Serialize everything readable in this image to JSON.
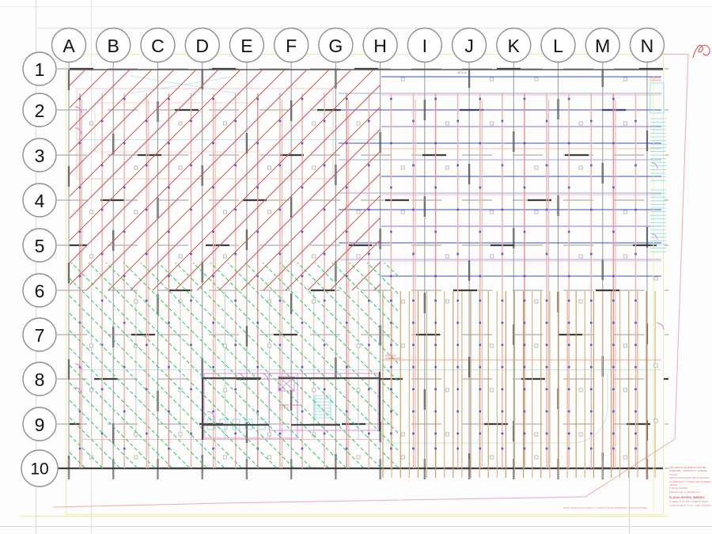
{
  "grid": {
    "columns": [
      "A",
      "B",
      "C",
      "D",
      "E",
      "F",
      "G",
      "H",
      "I",
      "J",
      "K",
      "L",
      "M",
      "N"
    ],
    "rows": [
      "1",
      "2",
      "3",
      "4",
      "5",
      "6",
      "7",
      "8",
      "9",
      "10"
    ]
  },
  "colors": {
    "red_hatch": "#d05c52",
    "green_hatch": "#3cc968",
    "blue_strong": "#3f51c8",
    "blue_light": "#9aa8e6",
    "purple": "#8b74d2",
    "pink_line": "#efb0ac",
    "pink_strong": "#e88f88",
    "tan": "#d7b078",
    "tan_dark": "#c99a55",
    "cyan": "#7fdfe6",
    "cyan_light": "#bfe9ef",
    "magenta": "#d974d4",
    "grid_grey": "#979797",
    "grid_dark": "#3e3e3e",
    "marker_grey": "#b2b2b2",
    "yellow": "#efeea6",
    "boundary_pink": "#f2aaaa",
    "dot_blue": "#4a5cd4",
    "title_red": "#e0625c",
    "scribble_red": "#d94f4f",
    "wall_grey": "#4a4a4a",
    "bubble_stroke": "#8f8f8f",
    "bubble_text": "#111111"
  },
  "title_block": {
    "lines": [
      {
        "text": "PROYECTO DE EJECUCIÓN DE",
        "style": "strong"
      },
      {
        "text": "NAVE IND., OFICINAS Y GARAJE",
        "style": "strong"
      },
      {
        "text": "PLANO:",
        "style": "line"
      },
      {
        "text": "INSTALACIÓN ELÉCTRICA. PLANTA",
        "style": "line"
      },
      {
        "text": "ALUMBRADO Y TOMAS DE CORRIENTE",
        "style": "line"
      },
      {
        "text": "FECHA:",
        "style": "line"
      },
      {
        "text": "P. BASE 02/2005",
        "style": "line"
      },
      {
        "text": "ESCALA GR. 1:100 (DIN-A1)",
        "style": "line"
      },
      {
        "text": "ELADIO RIVERA JIMÉNEZ",
        "style": "name"
      },
      {
        "text": "C/ REAL Nº 15 1ºB - PUERTO REAL",
        "style": "line"
      },
      {
        "text": "TLF/FAX 956 47 47 47 - ARQ. TÉCNICO",
        "style": "line"
      }
    ]
  },
  "notes": {
    "bottom_note": "NOTA: ESTE PLANO ANULA Y SUSTITUYE AL ANTERIOR - INSTALACIONES",
    "dimension_top": "38.70 m",
    "feeder_label_1": "LÍNEA GEN.",
    "feeder_label_2": "ALIMENTACIÓN",
    "detail_label_1": "CUADRO GENERAL",
    "detail_label_2": "S.T. 380V",
    "stair_label_1": "ESCALERA",
    "stair_label_2": "ASCENSOR"
  }
}
